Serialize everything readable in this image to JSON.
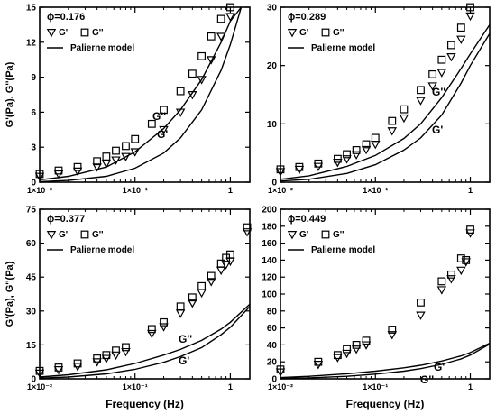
{
  "chart_data": [
    {
      "type": "scatter",
      "phi_label": "ϕ=0.176",
      "ylabel": "G'(Pa), G''(Pa)",
      "xlabel": "",
      "x_scale": "log",
      "xlim": [
        0.01,
        1.6
      ],
      "ylim": [
        0,
        15
      ],
      "yticks": [
        0,
        3,
        6,
        9,
        12,
        15
      ],
      "xtick_labels": [
        "1×10⁻²",
        "1×10⁻¹",
        "1"
      ],
      "legend": {
        "gp": "G'",
        "gpp": "G''",
        "model": "Palierne model"
      },
      "curve_labels": {
        "gpp": "G''",
        "gp": "G'"
      },
      "series": [
        {
          "name": "G'",
          "marker": "triangle",
          "x": [
            0.01,
            0.0158,
            0.025,
            0.04,
            0.05,
            0.063,
            0.08,
            0.1,
            0.2,
            0.3,
            0.4,
            0.5,
            0.63,
            0.8,
            1.0
          ],
          "y": [
            0.5,
            0.7,
            0.95,
            1.3,
            1.6,
            1.9,
            2.2,
            2.6,
            4.5,
            6.0,
            7.5,
            8.8,
            10.5,
            12.5,
            14.2
          ]
        },
        {
          "name": "G''",
          "marker": "square",
          "x": [
            0.01,
            0.0158,
            0.025,
            0.04,
            0.05,
            0.063,
            0.08,
            0.1,
            0.15,
            0.2,
            0.3,
            0.4,
            0.5,
            0.63,
            0.8,
            1.0
          ],
          "y": [
            0.7,
            1.0,
            1.3,
            1.8,
            2.2,
            2.7,
            3.1,
            3.7,
            5.0,
            6.2,
            7.8,
            9.3,
            10.8,
            12.5,
            14.0,
            15.0
          ]
        },
        {
          "name": "model G''",
          "line": true,
          "x": [
            0.01,
            0.02,
            0.05,
            0.1,
            0.2,
            0.3,
            0.5,
            0.8,
            1.0,
            1.3
          ],
          "y": [
            0.2,
            0.5,
            1.3,
            2.6,
            4.6,
            6.2,
            8.8,
            12.0,
            13.8,
            15.0
          ]
        },
        {
          "name": "model G'",
          "line": true,
          "x": [
            0.01,
            0.02,
            0.05,
            0.1,
            0.2,
            0.3,
            0.5,
            0.8,
            1.0,
            1.3
          ],
          "y": [
            0.05,
            0.15,
            0.5,
            1.2,
            2.5,
            3.8,
            6.2,
            9.6,
            11.8,
            15.0
          ]
        }
      ]
    },
    {
      "type": "scatter",
      "phi_label": "ϕ=0.289",
      "ylabel": "",
      "xlabel": "",
      "x_scale": "log",
      "xlim": [
        0.01,
        1.6
      ],
      "ylim": [
        0,
        30
      ],
      "yticks": [
        0,
        10,
        20,
        30
      ],
      "xtick_labels": [
        "1×10⁻²",
        "1×10⁻¹",
        "1"
      ],
      "legend": {
        "gp": "G'",
        "gpp": "G''",
        "model": "Palierne model"
      },
      "curve_labels": {
        "gpp": "G''",
        "gp": "G'"
      },
      "series": [
        {
          "name": "G'",
          "marker": "triangle",
          "x": [
            0.01,
            0.0158,
            0.025,
            0.04,
            0.05,
            0.063,
            0.08,
            0.1,
            0.15,
            0.2,
            0.3,
            0.4,
            0.5,
            0.63,
            0.8,
            1.0
          ],
          "y": [
            1.8,
            2.2,
            2.7,
            3.4,
            4.0,
            4.7,
            5.6,
            6.5,
            8.8,
            11.0,
            14.0,
            16.5,
            18.8,
            21.5,
            24.5,
            28.5
          ]
        },
        {
          "name": "G''",
          "marker": "square",
          "x": [
            0.01,
            0.0158,
            0.025,
            0.04,
            0.05,
            0.063,
            0.08,
            0.1,
            0.15,
            0.2,
            0.3,
            0.4,
            0.5,
            0.63,
            0.8,
            1.0
          ],
          "y": [
            2.2,
            2.6,
            3.2,
            4.0,
            4.8,
            5.5,
            6.5,
            7.6,
            10.5,
            12.5,
            15.8,
            18.5,
            21.0,
            23.5,
            26.5,
            30.0
          ]
        },
        {
          "name": "model G''",
          "line": true,
          "x": [
            0.01,
            0.02,
            0.05,
            0.1,
            0.2,
            0.3,
            0.5,
            0.8,
            1.0,
            1.6
          ],
          "y": [
            0.5,
            1.1,
            2.7,
            4.6,
            7.5,
            10.0,
            14.5,
            19.5,
            22.0,
            27.0
          ]
        },
        {
          "name": "model G'",
          "line": true,
          "x": [
            0.01,
            0.02,
            0.05,
            0.1,
            0.2,
            0.3,
            0.5,
            0.8,
            1.0,
            1.6
          ],
          "y": [
            0.2,
            0.5,
            1.5,
            3.0,
            5.5,
            7.6,
            11.5,
            17.0,
            20.0,
            25.5
          ]
        }
      ]
    },
    {
      "type": "scatter",
      "phi_label": "ϕ=0.377",
      "ylabel": "G'(Pa), G''(Pa)",
      "xlabel": "Frequency (Hz)",
      "x_scale": "log",
      "xlim": [
        0.01,
        1.6
      ],
      "ylim": [
        0,
        75
      ],
      "yticks": [
        0,
        15,
        30,
        45,
        60,
        75
      ],
      "xtick_labels": [
        "1×10⁻²",
        "1×10⁻¹",
        "1"
      ],
      "legend": {
        "gp": "G'",
        "gpp": "G''",
        "model": "Palierne model"
      },
      "curve_labels": {
        "gpp": "G''",
        "gp": "G'"
      },
      "series": [
        {
          "name": "G'",
          "marker": "triangle",
          "x": [
            0.01,
            0.0158,
            0.025,
            0.04,
            0.05,
            0.063,
            0.08,
            0.15,
            0.2,
            0.3,
            0.4,
            0.5,
            0.63,
            0.8,
            0.9,
            1.0,
            1.5
          ],
          "y": [
            2.5,
            4.0,
            5.5,
            7.5,
            9.0,
            10.5,
            12.0,
            20.0,
            23.0,
            29.0,
            33.5,
            38.0,
            43.0,
            48.0,
            50.5,
            52.0,
            65.0
          ]
        },
        {
          "name": "G''",
          "marker": "square",
          "x": [
            0.01,
            0.0158,
            0.025,
            0.04,
            0.05,
            0.063,
            0.08,
            0.15,
            0.2,
            0.3,
            0.4,
            0.5,
            0.63,
            0.8,
            0.9,
            1.0,
            1.5
          ],
          "y": [
            3.5,
            5.0,
            6.8,
            9.0,
            10.5,
            12.5,
            14.0,
            22.0,
            25.0,
            32.0,
            36.0,
            41.0,
            45.5,
            51.0,
            53.5,
            55.0,
            67.0
          ]
        },
        {
          "name": "model G''",
          "line": true,
          "x": [
            0.01,
            0.02,
            0.05,
            0.1,
            0.2,
            0.3,
            0.5,
            0.8,
            1.0,
            1.6
          ],
          "y": [
            0.8,
            1.8,
            4.0,
            6.8,
            10.5,
            13.0,
            17.0,
            22.0,
            25.0,
            33.0
          ]
        },
        {
          "name": "model G'",
          "line": true,
          "x": [
            0.01,
            0.02,
            0.05,
            0.1,
            0.2,
            0.3,
            0.5,
            0.8,
            1.0,
            1.6
          ],
          "y": [
            0.3,
            0.8,
            2.2,
            4.2,
            7.3,
            9.8,
            13.8,
            19.5,
            22.8,
            32.0
          ]
        }
      ]
    },
    {
      "type": "scatter",
      "phi_label": "ϕ=0.449",
      "ylabel": "",
      "xlabel": "Frequency (Hz)",
      "x_scale": "log",
      "xlim": [
        0.01,
        1.6
      ],
      "ylim": [
        0,
        200
      ],
      "yticks": [
        0,
        20,
        40,
        60,
        80,
        100,
        120,
        140,
        160,
        180,
        200
      ],
      "xtick_labels": [
        "1×10⁻²",
        "1×10⁻¹",
        "1"
      ],
      "legend": {
        "gp": "G'",
        "gpp": "G''",
        "model": "Palierne model"
      },
      "curve_labels": {
        "gpp": "G''",
        "gp": "G'"
      },
      "series": [
        {
          "name": "G'",
          "marker": "triangle",
          "x": [
            0.01,
            0.025,
            0.04,
            0.05,
            0.063,
            0.08,
            0.15,
            0.3,
            0.5,
            0.63,
            0.8,
            0.9,
            1.0
          ],
          "y": [
            8,
            17,
            25,
            30,
            35,
            40,
            52,
            75,
            105,
            118,
            128,
            138,
            172
          ]
        },
        {
          "name": "G''",
          "marker": "square",
          "x": [
            0.01,
            0.025,
            0.04,
            0.05,
            0.063,
            0.08,
            0.15,
            0.3,
            0.5,
            0.63,
            0.8,
            0.9,
            1.0
          ],
          "y": [
            11,
            20,
            28,
            35,
            40,
            45,
            58,
            90,
            115,
            123,
            142,
            140,
            176
          ]
        },
        {
          "name": "model G''",
          "line": true,
          "x": [
            0.01,
            0.02,
            0.05,
            0.1,
            0.2,
            0.3,
            0.5,
            0.8,
            1.0,
            1.6
          ],
          "y": [
            1.5,
            3.0,
            6.0,
            9.0,
            13.0,
            16.0,
            21.0,
            27.0,
            31.0,
            42.0
          ]
        },
        {
          "name": "model G'",
          "line": true,
          "x": [
            0.01,
            0.02,
            0.05,
            0.1,
            0.2,
            0.3,
            0.5,
            0.8,
            1.0,
            1.6
          ],
          "y": [
            0.5,
            1.2,
            3.0,
            5.5,
            9.0,
            12.0,
            17.0,
            23.5,
            28.0,
            41.0
          ]
        }
      ]
    }
  ]
}
